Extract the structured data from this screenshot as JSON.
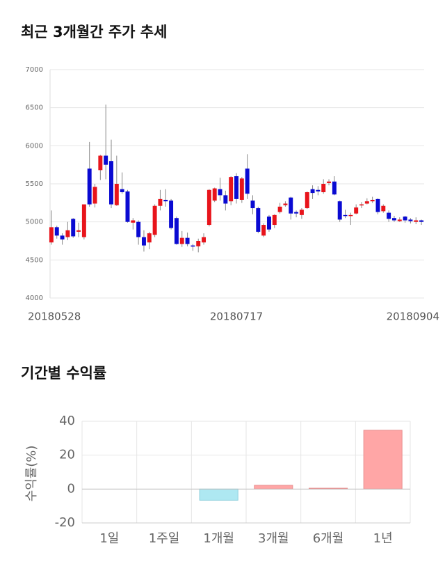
{
  "chart_data": [
    {
      "type": "candlestick",
      "title": "최근 3개월간 주가 추세",
      "categories": [
        "20180528",
        null,
        null,
        null,
        null,
        null,
        null,
        null,
        null,
        null,
        null,
        null,
        null,
        null,
        null,
        null,
        null,
        null,
        null,
        null,
        null,
        null,
        null,
        null,
        null,
        null,
        null,
        null,
        null,
        null,
        null,
        null,
        null,
        null,
        "20180717",
        null,
        null,
        null,
        null,
        null,
        null,
        null,
        null,
        null,
        null,
        null,
        null,
        null,
        null,
        null,
        null,
        null,
        null,
        null,
        null,
        null,
        null,
        null,
        null,
        null,
        null,
        null,
        null,
        null,
        null,
        null,
        null,
        null,
        "20180904"
      ],
      "open": [
        4730,
        4930,
        4820,
        4800,
        5040,
        4870,
        4800,
        5700,
        5240,
        5680,
        5870,
        5800,
        5220,
        5430,
        5400,
        4990,
        5000,
        4800,
        4730,
        4830,
        5210,
        5290,
        5280,
        5050,
        4710,
        4790,
        4690,
        4680,
        4730,
        4960,
        5280,
        5430,
        5350,
        5270,
        5600,
        5290,
        5700,
        5280,
        5180,
        4820,
        5070,
        4960,
        5130,
        5220,
        5320,
        5130,
        5090,
        5180,
        5430,
        5420,
        5390,
        5510,
        5530,
        5270,
        5090,
        5080,
        5110,
        5220,
        5240,
        5270,
        5300,
        5140,
        5120,
        5050,
        5010,
        5070,
        5030,
        5000,
        5020
      ],
      "high": [
        5150,
        4950,
        4850,
        5000,
        5050,
        4990,
        5230,
        6050,
        5500,
        5880,
        6540,
        6080,
        5870,
        5650,
        5420,
        5050,
        5020,
        4890,
        4870,
        5230,
        5420,
        5430,
        5300,
        5070,
        4880,
        4860,
        4710,
        4780,
        4850,
        5430,
        5450,
        5580,
        5410,
        5600,
        5640,
        5590,
        5890,
        5350,
        5200,
        4980,
        5090,
        5100,
        5250,
        5270,
        5330,
        5150,
        5180,
        5400,
        5480,
        5470,
        5560,
        5560,
        5600,
        5280,
        5160,
        5120,
        5230,
        5260,
        5310,
        5330,
        5310,
        5230,
        5150,
        5080,
        5060,
        5080,
        5050,
        5060,
        5030
      ],
      "low": [
        4700,
        4780,
        4700,
        4760,
        4790,
        4800,
        4770,
        5200,
        5190,
        5550,
        5560,
        5180,
        5210,
        5370,
        4990,
        4900,
        4700,
        4610,
        4640,
        4800,
        5150,
        5200,
        4900,
        4700,
        4670,
        4680,
        4620,
        4600,
        4700,
        4940,
        5260,
        5280,
        5150,
        5220,
        5240,
        5250,
        5300,
        5100,
        4850,
        4800,
        4870,
        4920,
        5110,
        5200,
        5030,
        5060,
        5040,
        5170,
        5300,
        5350,
        5370,
        5480,
        5350,
        5000,
        5050,
        4960,
        5100,
        5180,
        5230,
        5250,
        5100,
        5120,
        5000,
        5000,
        5000,
        4990,
        4980,
        4970,
        4960
      ],
      "close": [
        4930,
        4820,
        4770,
        4890,
        4810,
        4890,
        5230,
        5230,
        5460,
        5870,
        5750,
        5230,
        5500,
        5390,
        5000,
        5020,
        4800,
        4690,
        4850,
        5210,
        5300,
        5270,
        4920,
        4710,
        4790,
        4710,
        4680,
        4750,
        4800,
        5420,
        5440,
        5350,
        5240,
        5590,
        5300,
        5570,
        5370,
        5180,
        4870,
        4960,
        4900,
        5090,
        5200,
        5240,
        5110,
        5110,
        5160,
        5390,
        5380,
        5400,
        5500,
        5530,
        5360,
        5030,
        5080,
        5090,
        5190,
        5230,
        5270,
        5290,
        5130,
        5210,
        5040,
        5020,
        5030,
        5020,
        5010,
        5020,
        5000
      ],
      "up_color": "#e8141b",
      "down_color": "#0a0ad2",
      "ylim": [
        4000,
        7000
      ],
      "yticks": [
        4000,
        4500,
        5000,
        5500,
        6000,
        6500,
        7000
      ],
      "grid": true
    },
    {
      "type": "bar",
      "title": "기간별 수익률",
      "ylabel": "수익률(%)",
      "categories": [
        "1일",
        "1주일",
        "1개월",
        "3개월",
        "6개월",
        "1년"
      ],
      "values": [
        0,
        0,
        -6.6,
        2.2,
        0.5,
        34.7
      ],
      "positive_color": "#ffa6a6",
      "negative_color": "#aee8f2",
      "ylim": [
        -20,
        40
      ],
      "yticks": [
        -20,
        0,
        20,
        40
      ],
      "grid": true
    }
  ]
}
